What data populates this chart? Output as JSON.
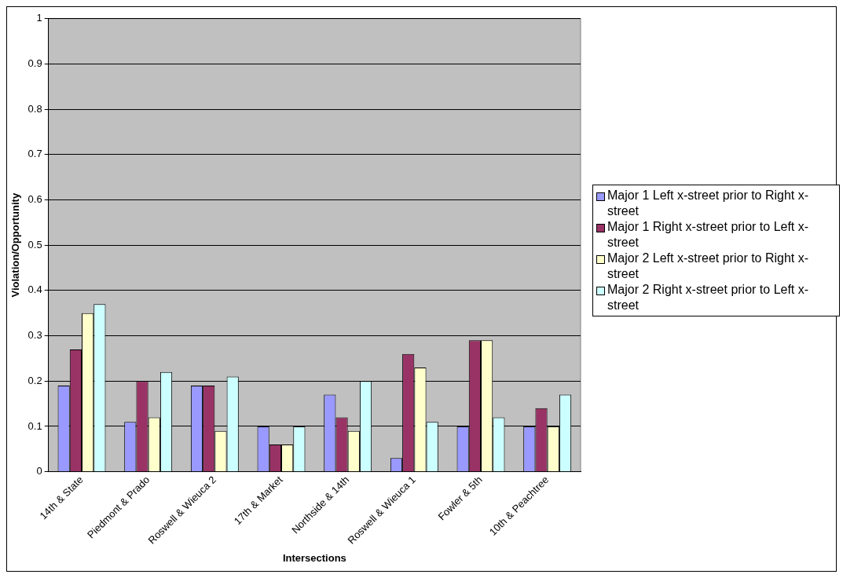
{
  "chart_data": {
    "type": "bar",
    "xlabel": "Intersections",
    "ylabel": "Violation/Opportunity",
    "categories": [
      "14th & State",
      "Piedmont & Prado",
      "Roswell & Wieuca 2",
      "17th & Market",
      "Northside & 14th",
      "Roswell & Wieuca 1",
      "Fowler & 5th",
      "10th & Peachtree"
    ],
    "series": [
      {
        "name": "Major 1 Left x-street prior to Right x-street",
        "color": "#9999ff",
        "values": [
          0.19,
          0.11,
          0.19,
          0.1,
          0.17,
          0.03,
          0.1,
          0.1
        ]
      },
      {
        "name": "Major 1 Right x-street prior to Left x-street",
        "color": "#993366",
        "values": [
          0.27,
          0.2,
          0.19,
          0.06,
          0.12,
          0.26,
          0.29,
          0.14
        ]
      },
      {
        "name": "Major 2 Left x-street prior to Right x-street",
        "color": "#ffffcc",
        "values": [
          0.35,
          0.12,
          0.09,
          0.06,
          0.09,
          0.23,
          0.29,
          0.1
        ]
      },
      {
        "name": "Major 2 Right x-street prior to Left x-street",
        "color": "#ccffff",
        "values": [
          0.37,
          0.22,
          0.21,
          0.1,
          0.2,
          0.11,
          0.12,
          0.17
        ]
      }
    ],
    "ylim": [
      0,
      1
    ],
    "yticks": [
      0,
      0.1,
      0.2,
      0.3,
      0.4,
      0.5,
      0.6,
      0.7,
      0.8,
      0.9,
      1
    ],
    "grid": "y",
    "legend": "right"
  }
}
